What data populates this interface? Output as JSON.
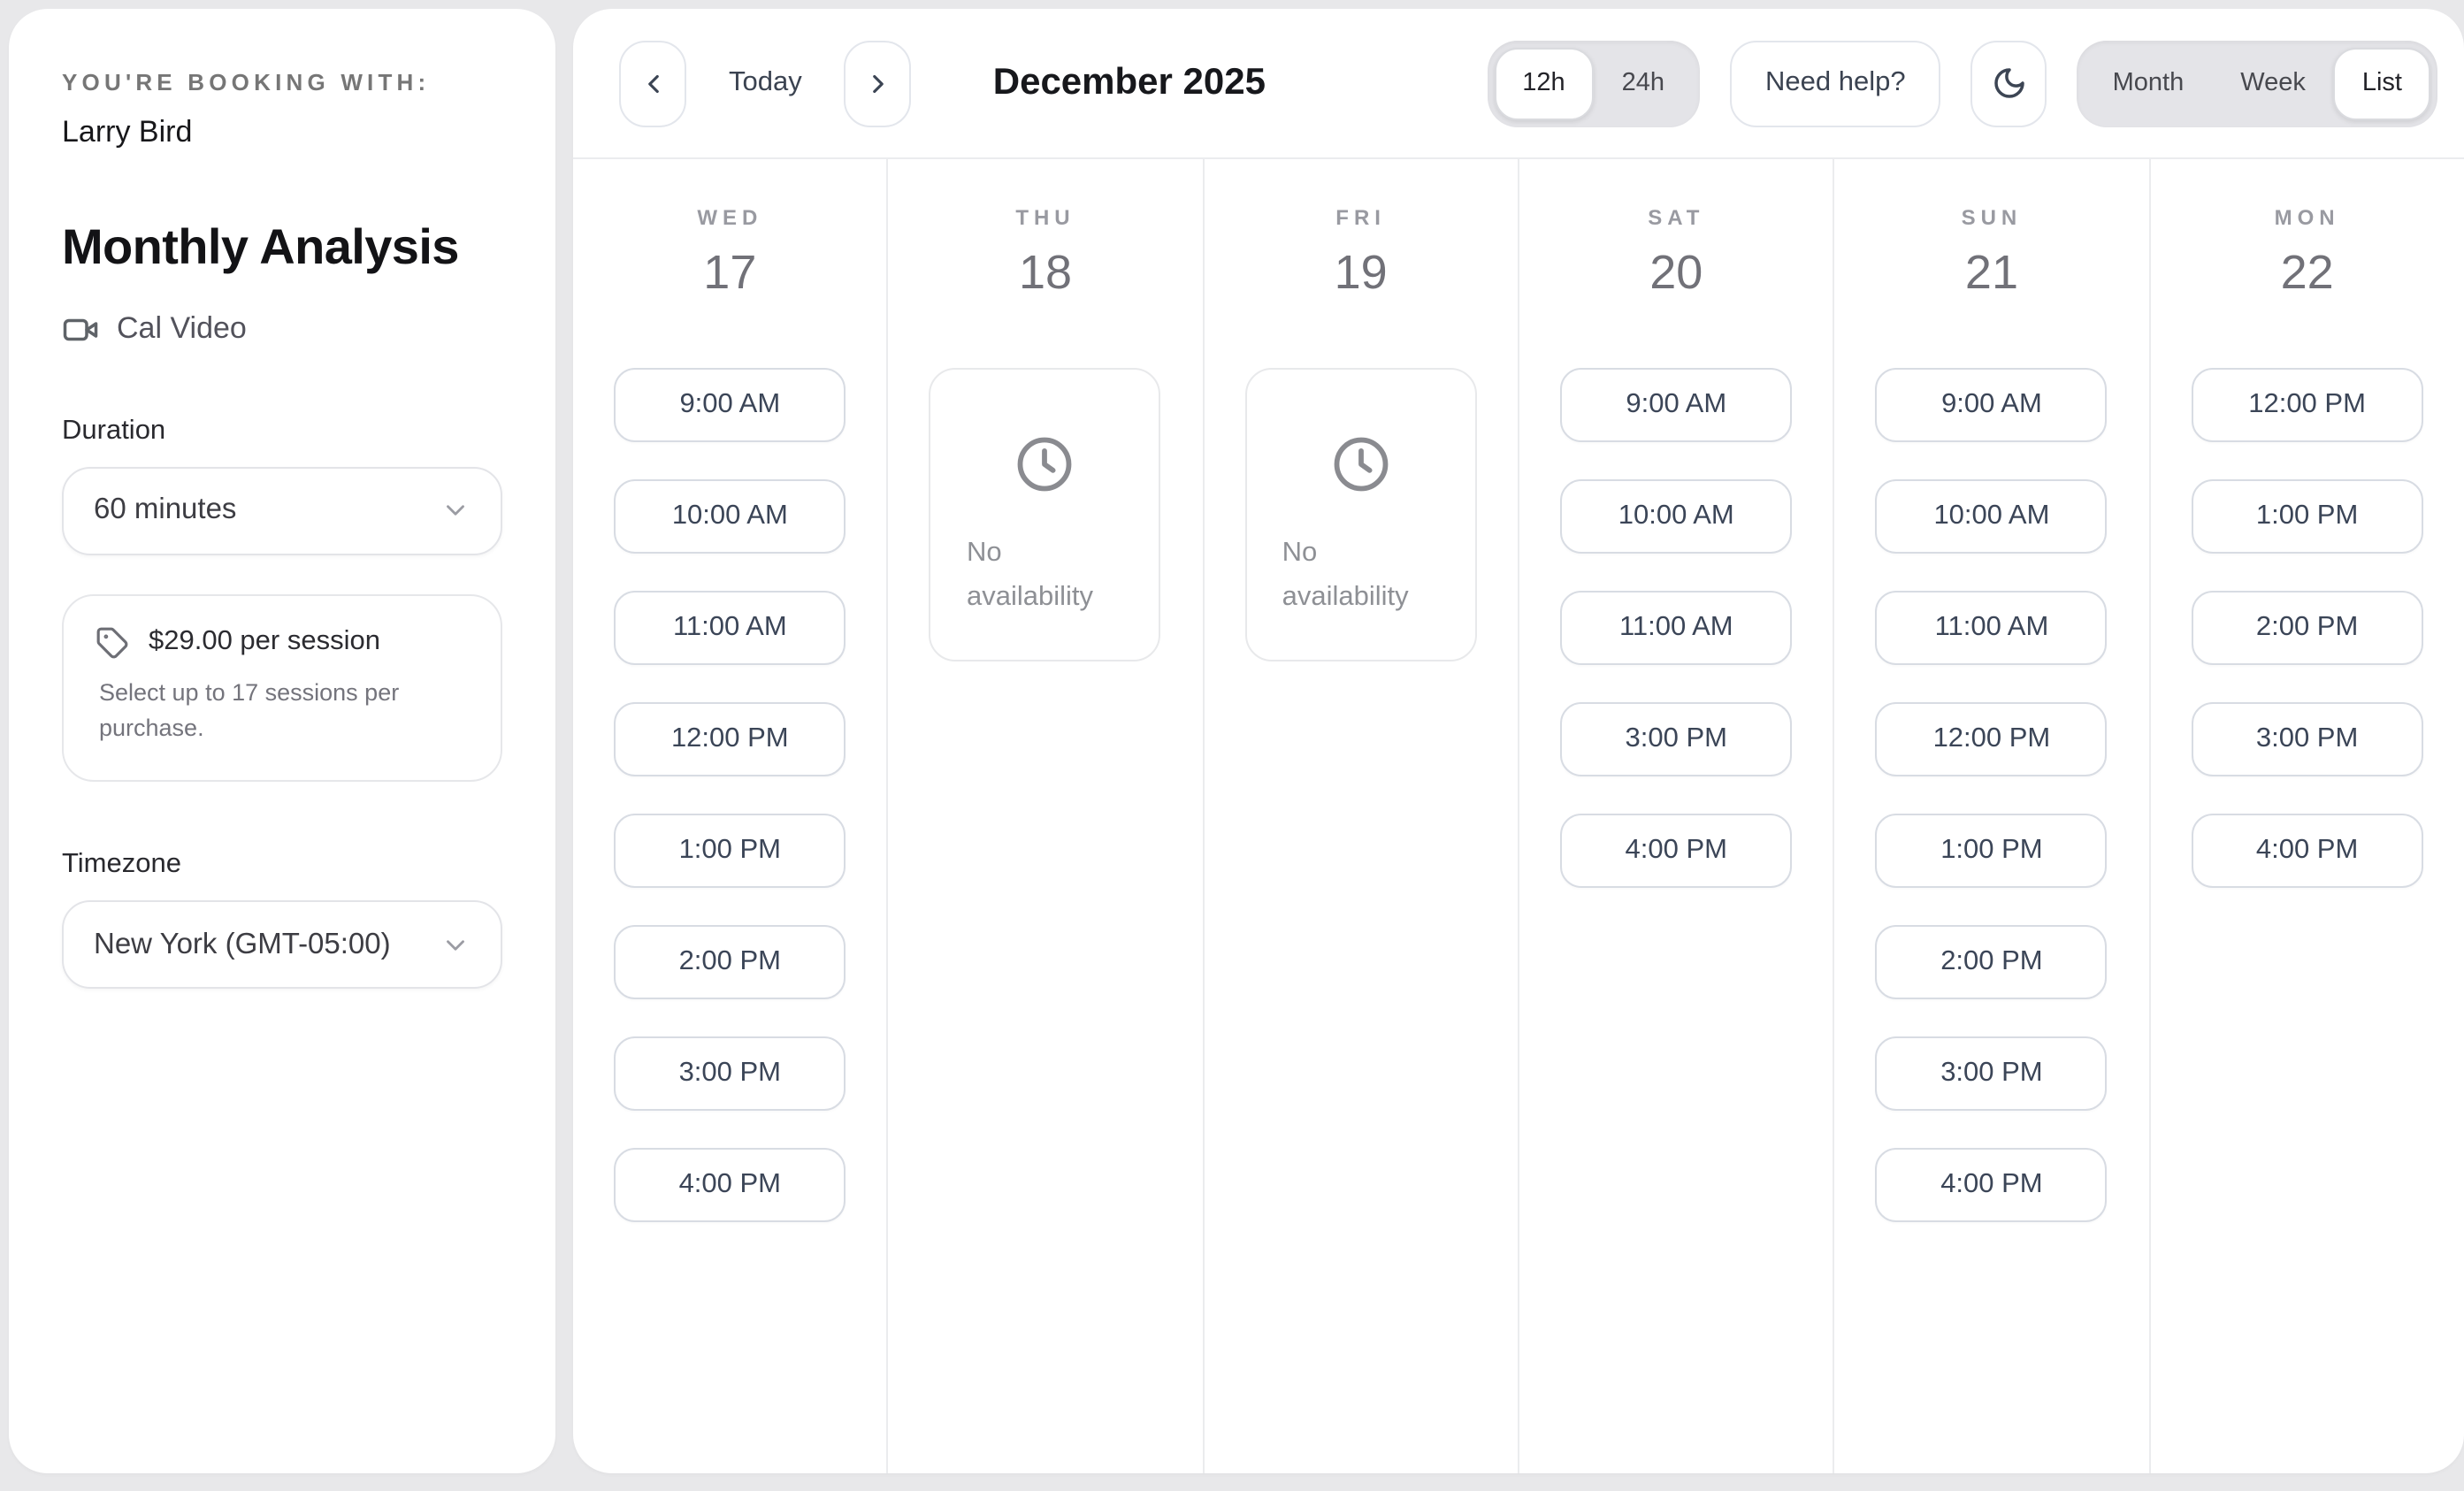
{
  "sidebar": {
    "booking_with_label": "YOU'RE BOOKING WITH:",
    "host_name": "Larry Bird",
    "event_title": "Monthly Analysis",
    "location": "Cal Video",
    "duration": {
      "label": "Duration",
      "selected": "60 minutes"
    },
    "price": {
      "title": "$29.00 per session",
      "description": "Select up to 17 sessions per purchase."
    },
    "timezone": {
      "label": "Timezone",
      "selected": "New York (GMT-05:00)"
    }
  },
  "toolbar": {
    "today_label": "Today",
    "month_title": "December 2025",
    "time_format": {
      "options": [
        "12h",
        "24h"
      ],
      "selected": "12h"
    },
    "help_label": "Need help?",
    "views": {
      "options": [
        "Month",
        "Week",
        "List"
      ],
      "selected": "List"
    }
  },
  "calendar": {
    "no_availability_label": "No availability",
    "days": [
      {
        "weekday": "WED",
        "date": "17",
        "slots": [
          "9:00 AM",
          "10:00 AM",
          "11:00 AM",
          "12:00 PM",
          "1:00 PM",
          "2:00 PM",
          "3:00 PM",
          "4:00 PM"
        ]
      },
      {
        "weekday": "THU",
        "date": "18",
        "slots": []
      },
      {
        "weekday": "FRI",
        "date": "19",
        "slots": []
      },
      {
        "weekday": "SAT",
        "date": "20",
        "slots": [
          "9:00 AM",
          "10:00 AM",
          "11:00 AM",
          "3:00 PM",
          "4:00 PM"
        ]
      },
      {
        "weekday": "SUN",
        "date": "21",
        "slots": [
          "9:00 AM",
          "10:00 AM",
          "11:00 AM",
          "12:00 PM",
          "1:00 PM",
          "2:00 PM",
          "3:00 PM",
          "4:00 PM"
        ]
      },
      {
        "weekday": "MON",
        "date": "22",
        "slots": [
          "12:00 PM",
          "1:00 PM",
          "2:00 PM",
          "3:00 PM",
          "4:00 PM"
        ]
      }
    ]
  },
  "colors": {
    "page_background": "#e8e8ea",
    "card_background": "#ffffff",
    "slot_text": "#3b4557",
    "slot_border": "#d8dce3",
    "muted_gray": "#8e9095",
    "segmented_track": "#e4e4e8"
  },
  "icons": {
    "location": "video-camera-icon",
    "price": "tag-icon",
    "prev": "chevron-left-icon",
    "next": "chevron-right-icon",
    "dark_mode": "moon-icon",
    "empty_day": "clock-icon",
    "select": "chevron-down-icon"
  }
}
